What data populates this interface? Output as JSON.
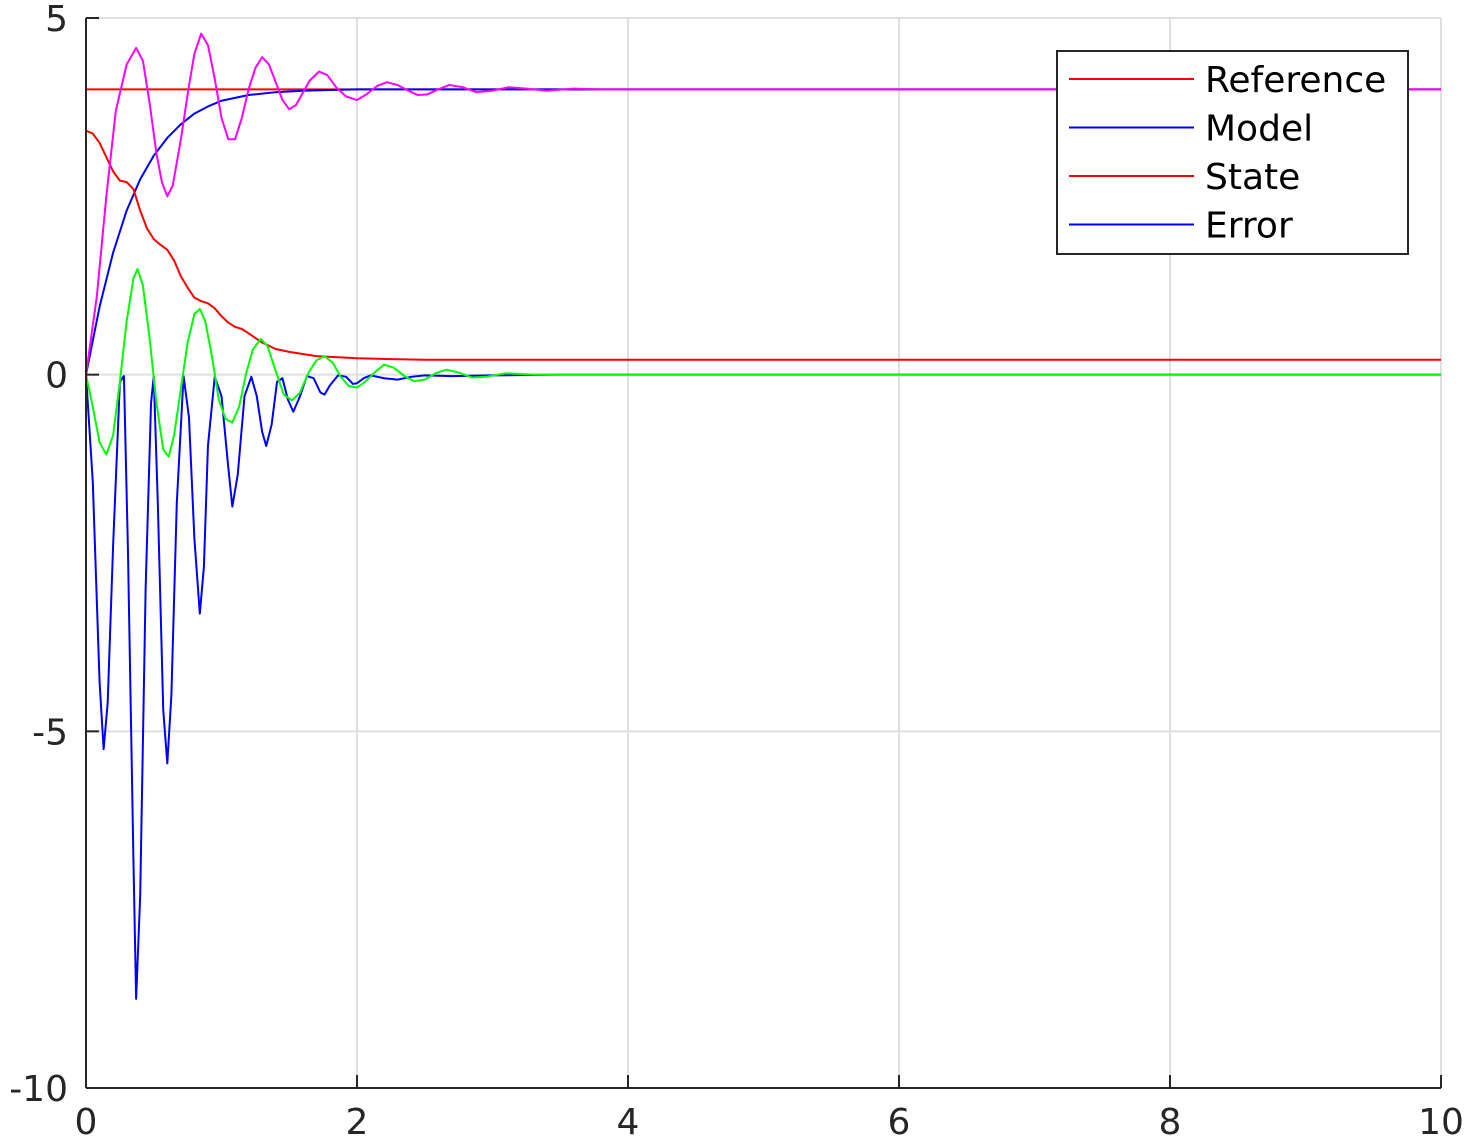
{
  "chart_data": {
    "type": "line",
    "title": "",
    "xlabel": "",
    "ylabel": "",
    "xlim": [
      0,
      10
    ],
    "ylim": [
      -10,
      5
    ],
    "grid": true,
    "legend_position": "top-right",
    "x_ticks": [
      0,
      2,
      4,
      6,
      8,
      10
    ],
    "x_tick_labels": [
      "0",
      "2",
      "4",
      "6",
      "8",
      "10"
    ],
    "y_ticks": [
      -10,
      -5,
      0,
      5
    ],
    "y_tick_labels": [
      "-10",
      "-5",
      "0",
      "5"
    ],
    "series": [
      {
        "name": "Reference",
        "color": "#ff0000",
        "points": [
          [
            0,
            4
          ],
          [
            10,
            4
          ]
        ]
      },
      {
        "name": "Model",
        "color": "#0000ff",
        "points": [
          [
            0,
            0
          ],
          [
            0.1,
            0.95
          ],
          [
            0.2,
            1.71
          ],
          [
            0.3,
            2.3
          ],
          [
            0.4,
            2.74
          ],
          [
            0.5,
            3.07
          ],
          [
            0.6,
            3.32
          ],
          [
            0.7,
            3.51
          ],
          [
            0.8,
            3.66
          ],
          [
            0.9,
            3.76
          ],
          [
            1.0,
            3.84
          ],
          [
            1.2,
            3.92
          ],
          [
            1.4,
            3.96
          ],
          [
            1.6,
            3.98
          ],
          [
            1.8,
            3.99
          ],
          [
            2.0,
            4.0
          ],
          [
            3.0,
            4.0
          ],
          [
            4.0,
            4.0
          ],
          [
            10,
            4.0
          ]
        ]
      },
      {
        "name": "State",
        "color": "#ff0000",
        "points": [
          [
            0,
            3.42
          ],
          [
            0.05,
            3.38
          ],
          [
            0.1,
            3.25
          ],
          [
            0.15,
            3.05
          ],
          [
            0.2,
            2.85
          ],
          [
            0.25,
            2.72
          ],
          [
            0.3,
            2.7
          ],
          [
            0.35,
            2.6
          ],
          [
            0.4,
            2.3
          ],
          [
            0.45,
            2.05
          ],
          [
            0.5,
            1.9
          ],
          [
            0.55,
            1.82
          ],
          [
            0.6,
            1.75
          ],
          [
            0.65,
            1.6
          ],
          [
            0.7,
            1.38
          ],
          [
            0.75,
            1.22
          ],
          [
            0.8,
            1.08
          ],
          [
            0.85,
            1.03
          ],
          [
            0.9,
            1.0
          ],
          [
            0.95,
            0.93
          ],
          [
            1.0,
            0.82
          ],
          [
            1.05,
            0.73
          ],
          [
            1.1,
            0.67
          ],
          [
            1.15,
            0.64
          ],
          [
            1.2,
            0.58
          ],
          [
            1.3,
            0.45
          ],
          [
            1.4,
            0.36
          ],
          [
            1.5,
            0.32
          ],
          [
            1.6,
            0.29
          ],
          [
            1.7,
            0.26
          ],
          [
            1.8,
            0.25
          ],
          [
            1.9,
            0.24
          ],
          [
            2.0,
            0.23
          ],
          [
            2.2,
            0.22
          ],
          [
            2.5,
            0.21
          ],
          [
            3.0,
            0.21
          ],
          [
            4.0,
            0.21
          ],
          [
            10,
            0.21
          ]
        ]
      },
      {
        "name": "Error",
        "color": "#0000ff",
        "points": [
          [
            0,
            0
          ],
          [
            0.05,
            -1.5
          ],
          [
            0.1,
            -4.3
          ],
          [
            0.13,
            -5.25
          ],
          [
            0.16,
            -4.6
          ],
          [
            0.2,
            -2.4
          ],
          [
            0.25,
            -0.1
          ],
          [
            0.28,
            -0.02
          ],
          [
            0.31,
            -2.5
          ],
          [
            0.35,
            -6.8
          ],
          [
            0.37,
            -8.75
          ],
          [
            0.4,
            -7.3
          ],
          [
            0.44,
            -3.0
          ],
          [
            0.48,
            -0.4
          ],
          [
            0.5,
            -0.02
          ],
          [
            0.53,
            -1.8
          ],
          [
            0.57,
            -4.7
          ],
          [
            0.6,
            -5.45
          ],
          [
            0.63,
            -4.5
          ],
          [
            0.67,
            -1.8
          ],
          [
            0.72,
            -0.02
          ],
          [
            0.76,
            -0.6
          ],
          [
            0.8,
            -2.3
          ],
          [
            0.84,
            -3.35
          ],
          [
            0.87,
            -2.7
          ],
          [
            0.9,
            -1.0
          ],
          [
            0.95,
            -0.03
          ],
          [
            1.0,
            -0.3
          ],
          [
            1.05,
            -1.3
          ],
          [
            1.08,
            -1.85
          ],
          [
            1.12,
            -1.4
          ],
          [
            1.17,
            -0.3
          ],
          [
            1.22,
            -0.03
          ],
          [
            1.26,
            -0.3
          ],
          [
            1.3,
            -0.8
          ],
          [
            1.33,
            -1.0
          ],
          [
            1.37,
            -0.7
          ],
          [
            1.41,
            -0.1
          ],
          [
            1.45,
            -0.05
          ],
          [
            1.49,
            -0.35
          ],
          [
            1.53,
            -0.52
          ],
          [
            1.58,
            -0.3
          ],
          [
            1.63,
            -0.02
          ],
          [
            1.68,
            -0.05
          ],
          [
            1.73,
            -0.25
          ],
          [
            1.76,
            -0.28
          ],
          [
            1.8,
            -0.15
          ],
          [
            1.86,
            -0.01
          ],
          [
            1.92,
            -0.03
          ],
          [
            1.97,
            -0.13
          ],
          [
            2.0,
            -0.12
          ],
          [
            2.05,
            -0.05
          ],
          [
            2.1,
            -0.01
          ],
          [
            2.2,
            -0.05
          ],
          [
            2.3,
            -0.07
          ],
          [
            2.4,
            -0.03
          ],
          [
            2.5,
            -0.01
          ],
          [
            2.7,
            -0.02
          ],
          [
            3.0,
            -0.01
          ],
          [
            3.5,
            0
          ],
          [
            4.0,
            0
          ],
          [
            10,
            0
          ]
        ]
      },
      {
        "name": "",
        "color": "#ff00ff",
        "points": [
          [
            0,
            0
          ],
          [
            0.08,
            1.1
          ],
          [
            0.15,
            2.5
          ],
          [
            0.22,
            3.7
          ],
          [
            0.3,
            4.35
          ],
          [
            0.37,
            4.58
          ],
          [
            0.42,
            4.4
          ],
          [
            0.47,
            3.8
          ],
          [
            0.52,
            3.1
          ],
          [
            0.56,
            2.7
          ],
          [
            0.6,
            2.5
          ],
          [
            0.64,
            2.65
          ],
          [
            0.7,
            3.3
          ],
          [
            0.76,
            4.05
          ],
          [
            0.8,
            4.5
          ],
          [
            0.85,
            4.78
          ],
          [
            0.9,
            4.62
          ],
          [
            0.95,
            4.15
          ],
          [
            1.0,
            3.6
          ],
          [
            1.05,
            3.3
          ],
          [
            1.1,
            3.3
          ],
          [
            1.15,
            3.6
          ],
          [
            1.2,
            4.0
          ],
          [
            1.25,
            4.3
          ],
          [
            1.3,
            4.45
          ],
          [
            1.35,
            4.35
          ],
          [
            1.4,
            4.1
          ],
          [
            1.45,
            3.85
          ],
          [
            1.5,
            3.72
          ],
          [
            1.55,
            3.78
          ],
          [
            1.6,
            3.95
          ],
          [
            1.65,
            4.12
          ],
          [
            1.72,
            4.25
          ],
          [
            1.78,
            4.2
          ],
          [
            1.85,
            4.02
          ],
          [
            1.92,
            3.9
          ],
          [
            2.0,
            3.85
          ],
          [
            2.07,
            3.93
          ],
          [
            2.15,
            4.05
          ],
          [
            2.22,
            4.1
          ],
          [
            2.3,
            4.06
          ],
          [
            2.38,
            3.98
          ],
          [
            2.45,
            3.92
          ],
          [
            2.52,
            3.93
          ],
          [
            2.6,
            4.0
          ],
          [
            2.68,
            4.06
          ],
          [
            2.78,
            4.03
          ],
          [
            2.88,
            3.96
          ],
          [
            3.0,
            3.98
          ],
          [
            3.12,
            4.03
          ],
          [
            3.25,
            4.01
          ],
          [
            3.4,
            3.98
          ],
          [
            3.6,
            4.01
          ],
          [
            3.8,
            4.0
          ],
          [
            4.0,
            4.0
          ],
          [
            10,
            4.0
          ]
        ]
      },
      {
        "name": "",
        "color": "#00ff00",
        "points": [
          [
            0,
            0
          ],
          [
            0.05,
            -0.45
          ],
          [
            0.1,
            -0.95
          ],
          [
            0.15,
            -1.12
          ],
          [
            0.2,
            -0.85
          ],
          [
            0.25,
            -0.1
          ],
          [
            0.3,
            0.75
          ],
          [
            0.35,
            1.35
          ],
          [
            0.38,
            1.48
          ],
          [
            0.42,
            1.25
          ],
          [
            0.47,
            0.5
          ],
          [
            0.52,
            -0.4
          ],
          [
            0.57,
            -1.05
          ],
          [
            0.61,
            -1.15
          ],
          [
            0.65,
            -0.85
          ],
          [
            0.7,
            -0.2
          ],
          [
            0.75,
            0.45
          ],
          [
            0.8,
            0.85
          ],
          [
            0.84,
            0.92
          ],
          [
            0.88,
            0.75
          ],
          [
            0.93,
            0.25
          ],
          [
            0.98,
            -0.35
          ],
          [
            1.03,
            -0.62
          ],
          [
            1.08,
            -0.67
          ],
          [
            1.13,
            -0.45
          ],
          [
            1.18,
            0.0
          ],
          [
            1.23,
            0.35
          ],
          [
            1.29,
            0.5
          ],
          [
            1.34,
            0.4
          ],
          [
            1.4,
            0.05
          ],
          [
            1.46,
            -0.28
          ],
          [
            1.52,
            -0.36
          ],
          [
            1.58,
            -0.25
          ],
          [
            1.64,
            0.02
          ],
          [
            1.7,
            0.2
          ],
          [
            1.76,
            0.26
          ],
          [
            1.82,
            0.17
          ],
          [
            1.88,
            -0.03
          ],
          [
            1.94,
            -0.16
          ],
          [
            2.0,
            -0.18
          ],
          [
            2.06,
            -0.1
          ],
          [
            2.14,
            0.05
          ],
          [
            2.2,
            0.14
          ],
          [
            2.27,
            0.1
          ],
          [
            2.35,
            -0.02
          ],
          [
            2.42,
            -0.09
          ],
          [
            2.5,
            -0.07
          ],
          [
            2.58,
            0.02
          ],
          [
            2.66,
            0.07
          ],
          [
            2.75,
            0.03
          ],
          [
            2.85,
            -0.04
          ],
          [
            2.95,
            -0.03
          ],
          [
            3.1,
            0.02
          ],
          [
            3.3,
            0.0
          ],
          [
            3.5,
            0.0
          ],
          [
            4.0,
            0.0
          ],
          [
            10,
            0.0
          ]
        ]
      }
    ]
  }
}
